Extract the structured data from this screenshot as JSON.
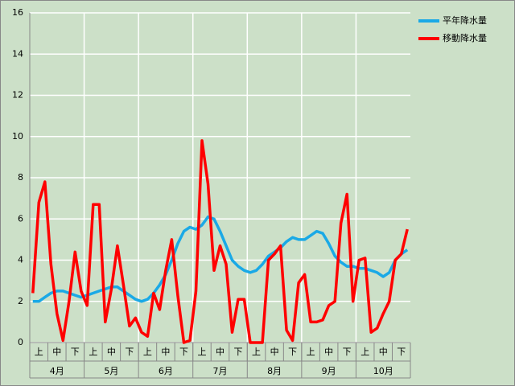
{
  "chart_data": {
    "type": "line",
    "categories": [
      null,
      "上",
      null,
      null,
      "中",
      null,
      null,
      "下",
      null,
      null,
      "上",
      null,
      null,
      "中",
      null,
      null,
      "下",
      null,
      null,
      "上",
      null,
      null,
      "中",
      null,
      null,
      "下",
      null,
      null,
      "上",
      null,
      null,
      "中",
      null,
      null,
      "下",
      null,
      null,
      "上",
      null,
      null,
      "中",
      null,
      null,
      "下",
      null,
      null,
      "上",
      null,
      null,
      "中",
      null,
      null,
      "下",
      null,
      null,
      "上",
      null,
      null,
      "中",
      null,
      null,
      "下",
      null
    ],
    "months": [
      "4月",
      "5月",
      "6月",
      "7月",
      "8月",
      "9月",
      "10月"
    ],
    "series": [
      {
        "name": "平年降水量",
        "color": "#1aa9e6",
        "values": [
          2.0,
          2.0,
          2.2,
          2.4,
          2.5,
          2.5,
          2.4,
          2.3,
          2.2,
          2.3,
          2.4,
          2.5,
          2.6,
          2.7,
          2.7,
          2.5,
          2.3,
          2.1,
          2.0,
          2.1,
          2.4,
          2.8,
          3.3,
          4.0,
          4.8,
          5.4,
          5.6,
          5.5,
          5.7,
          6.1,
          6.0,
          5.4,
          4.7,
          4.0,
          3.7,
          3.5,
          3.4,
          3.5,
          3.8,
          4.2,
          4.4,
          4.6,
          4.9,
          5.1,
          5.0,
          5.0,
          5.2,
          5.4,
          5.3,
          4.8,
          4.2,
          3.9,
          3.7,
          3.7,
          3.6,
          3.6,
          3.5,
          3.4,
          3.2,
          3.4,
          4.0,
          4.3,
          4.5
        ]
      },
      {
        "name": "移動降水量",
        "color": "#ff0000",
        "values": [
          2.4,
          6.8,
          7.8,
          3.8,
          1.4,
          0.1,
          2.0,
          4.4,
          2.5,
          1.8,
          6.7,
          6.7,
          1.0,
          2.6,
          4.7,
          2.8,
          0.8,
          1.2,
          0.5,
          0.3,
          2.4,
          1.6,
          3.5,
          5.0,
          2.3,
          0.0,
          0.1,
          2.5,
          9.8,
          7.7,
          3.5,
          4.7,
          3.8,
          0.5,
          2.1,
          2.1,
          0.0,
          0.0,
          0.0,
          4.0,
          4.3,
          4.7,
          0.6,
          0.1,
          2.9,
          3.3,
          1.0,
          1.0,
          1.1,
          1.8,
          2.0,
          5.8,
          7.2,
          2.0,
          4.0,
          4.1,
          0.5,
          0.7,
          1.4,
          2.0,
          4.0,
          4.3,
          5.5
        ]
      }
    ],
    "ylim": [
      0,
      16
    ],
    "yticks": [
      0,
      2,
      4,
      6,
      8,
      10,
      12,
      14,
      16
    ],
    "grid": true,
    "legend": "top-right"
  }
}
